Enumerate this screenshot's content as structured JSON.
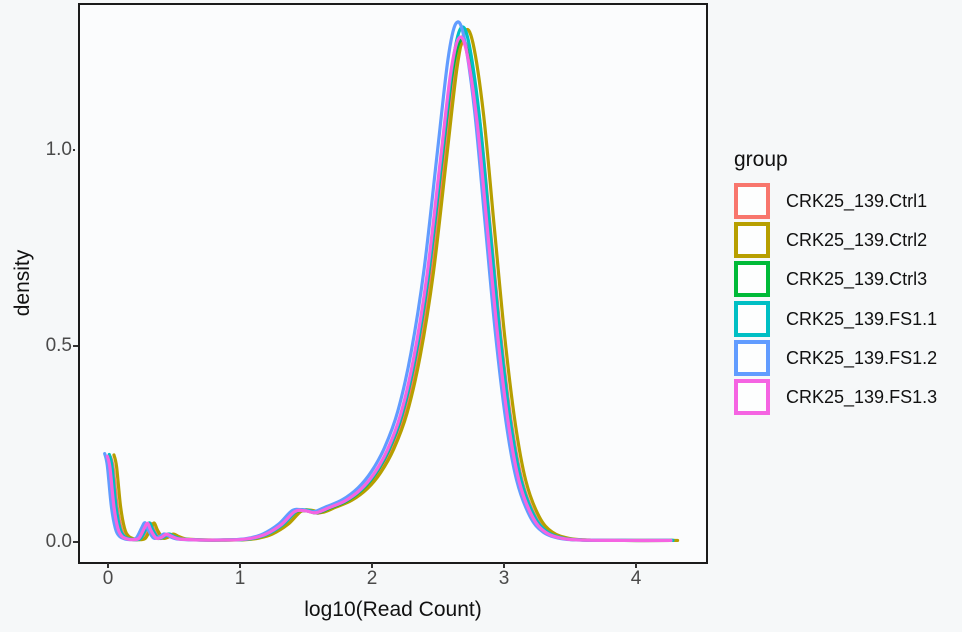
{
  "x_axis": {
    "title": "log10(Read Count)",
    "ticks": [
      "0",
      "1",
      "2",
      "3",
      "4"
    ]
  },
  "y_axis": {
    "title": "density",
    "ticks": [
      "0.0",
      "0.5",
      "1.0"
    ]
  },
  "legend": {
    "title": "group",
    "entries": [
      {
        "label": "CRK25_139.Ctrl1",
        "color": "#F8766D"
      },
      {
        "label": "CRK25_139.Ctrl2",
        "color": "#B79F00"
      },
      {
        "label": "CRK25_139.Ctrl3",
        "color": "#00BA38"
      },
      {
        "label": "CRK25_139.FS1.1",
        "color": "#00BFC4"
      },
      {
        "label": "CRK25_139.FS1.2",
        "color": "#619CFF"
      },
      {
        "label": "CRK25_139.FS1.3",
        "color": "#F564E2"
      }
    ]
  },
  "chart_data": {
    "type": "line",
    "subtype": "density",
    "title": "",
    "xlabel": "log10(Read Count)",
    "ylabel": "density",
    "xlim": [
      -0.21,
      4.52
    ],
    "ylim": [
      0,
      1.37
    ],
    "grid": false,
    "legend_position": "right",
    "x": [
      0.0,
      0.02,
      0.05,
      0.08,
      0.11,
      0.15,
      0.2,
      0.24,
      0.28,
      0.305,
      0.33,
      0.37,
      0.41,
      0.45,
      0.49,
      0.54,
      0.62,
      0.72,
      0.85,
      1.0,
      1.1,
      1.2,
      1.32,
      1.42,
      1.5,
      1.58,
      1.68,
      1.8,
      1.92,
      2.02,
      2.12,
      2.22,
      2.32,
      2.42,
      2.52,
      2.6,
      2.66,
      2.72,
      2.8,
      2.88,
      2.96,
      3.04,
      3.12,
      3.22,
      3.32,
      3.45,
      3.6,
      3.9,
      4.27
    ],
    "base_density": [
      0.22,
      0.19,
      0.09,
      0.035,
      0.015,
      0.008,
      0.006,
      0.01,
      0.035,
      0.048,
      0.03,
      0.01,
      0.012,
      0.02,
      0.014,
      0.008,
      0.006,
      0.005,
      0.005,
      0.006,
      0.01,
      0.02,
      0.045,
      0.078,
      0.08,
      0.075,
      0.088,
      0.105,
      0.135,
      0.175,
      0.235,
      0.325,
      0.47,
      0.68,
      0.97,
      1.2,
      1.29,
      1.26,
      1.08,
      0.8,
      0.52,
      0.3,
      0.155,
      0.065,
      0.025,
      0.009,
      0.005,
      0.004,
      0.004
    ],
    "series": [
      {
        "name": "CRK25_139.Ctrl1",
        "color": "#F8766D",
        "x_offset": 0.02,
        "y_scale": 0.985
      },
      {
        "name": "CRK25_139.Ctrl2",
        "color": "#B79F00",
        "x_offset": 0.045,
        "y_scale": 1.01
      },
      {
        "name": "CRK25_139.Ctrl3",
        "color": "#00BA38",
        "x_offset": 0.005,
        "y_scale": 0.99
      },
      {
        "name": "CRK25_139.FS1.1",
        "color": "#00BFC4",
        "x_offset": 0.01,
        "y_scale": 1.015
      },
      {
        "name": "CRK25_139.FS1.2",
        "color": "#619CFF",
        "x_offset": -0.025,
        "y_scale": 1.025
      },
      {
        "name": "CRK25_139.FS1.3",
        "color": "#F564E2",
        "x_offset": -0.005,
        "y_scale": 0.995
      }
    ]
  }
}
